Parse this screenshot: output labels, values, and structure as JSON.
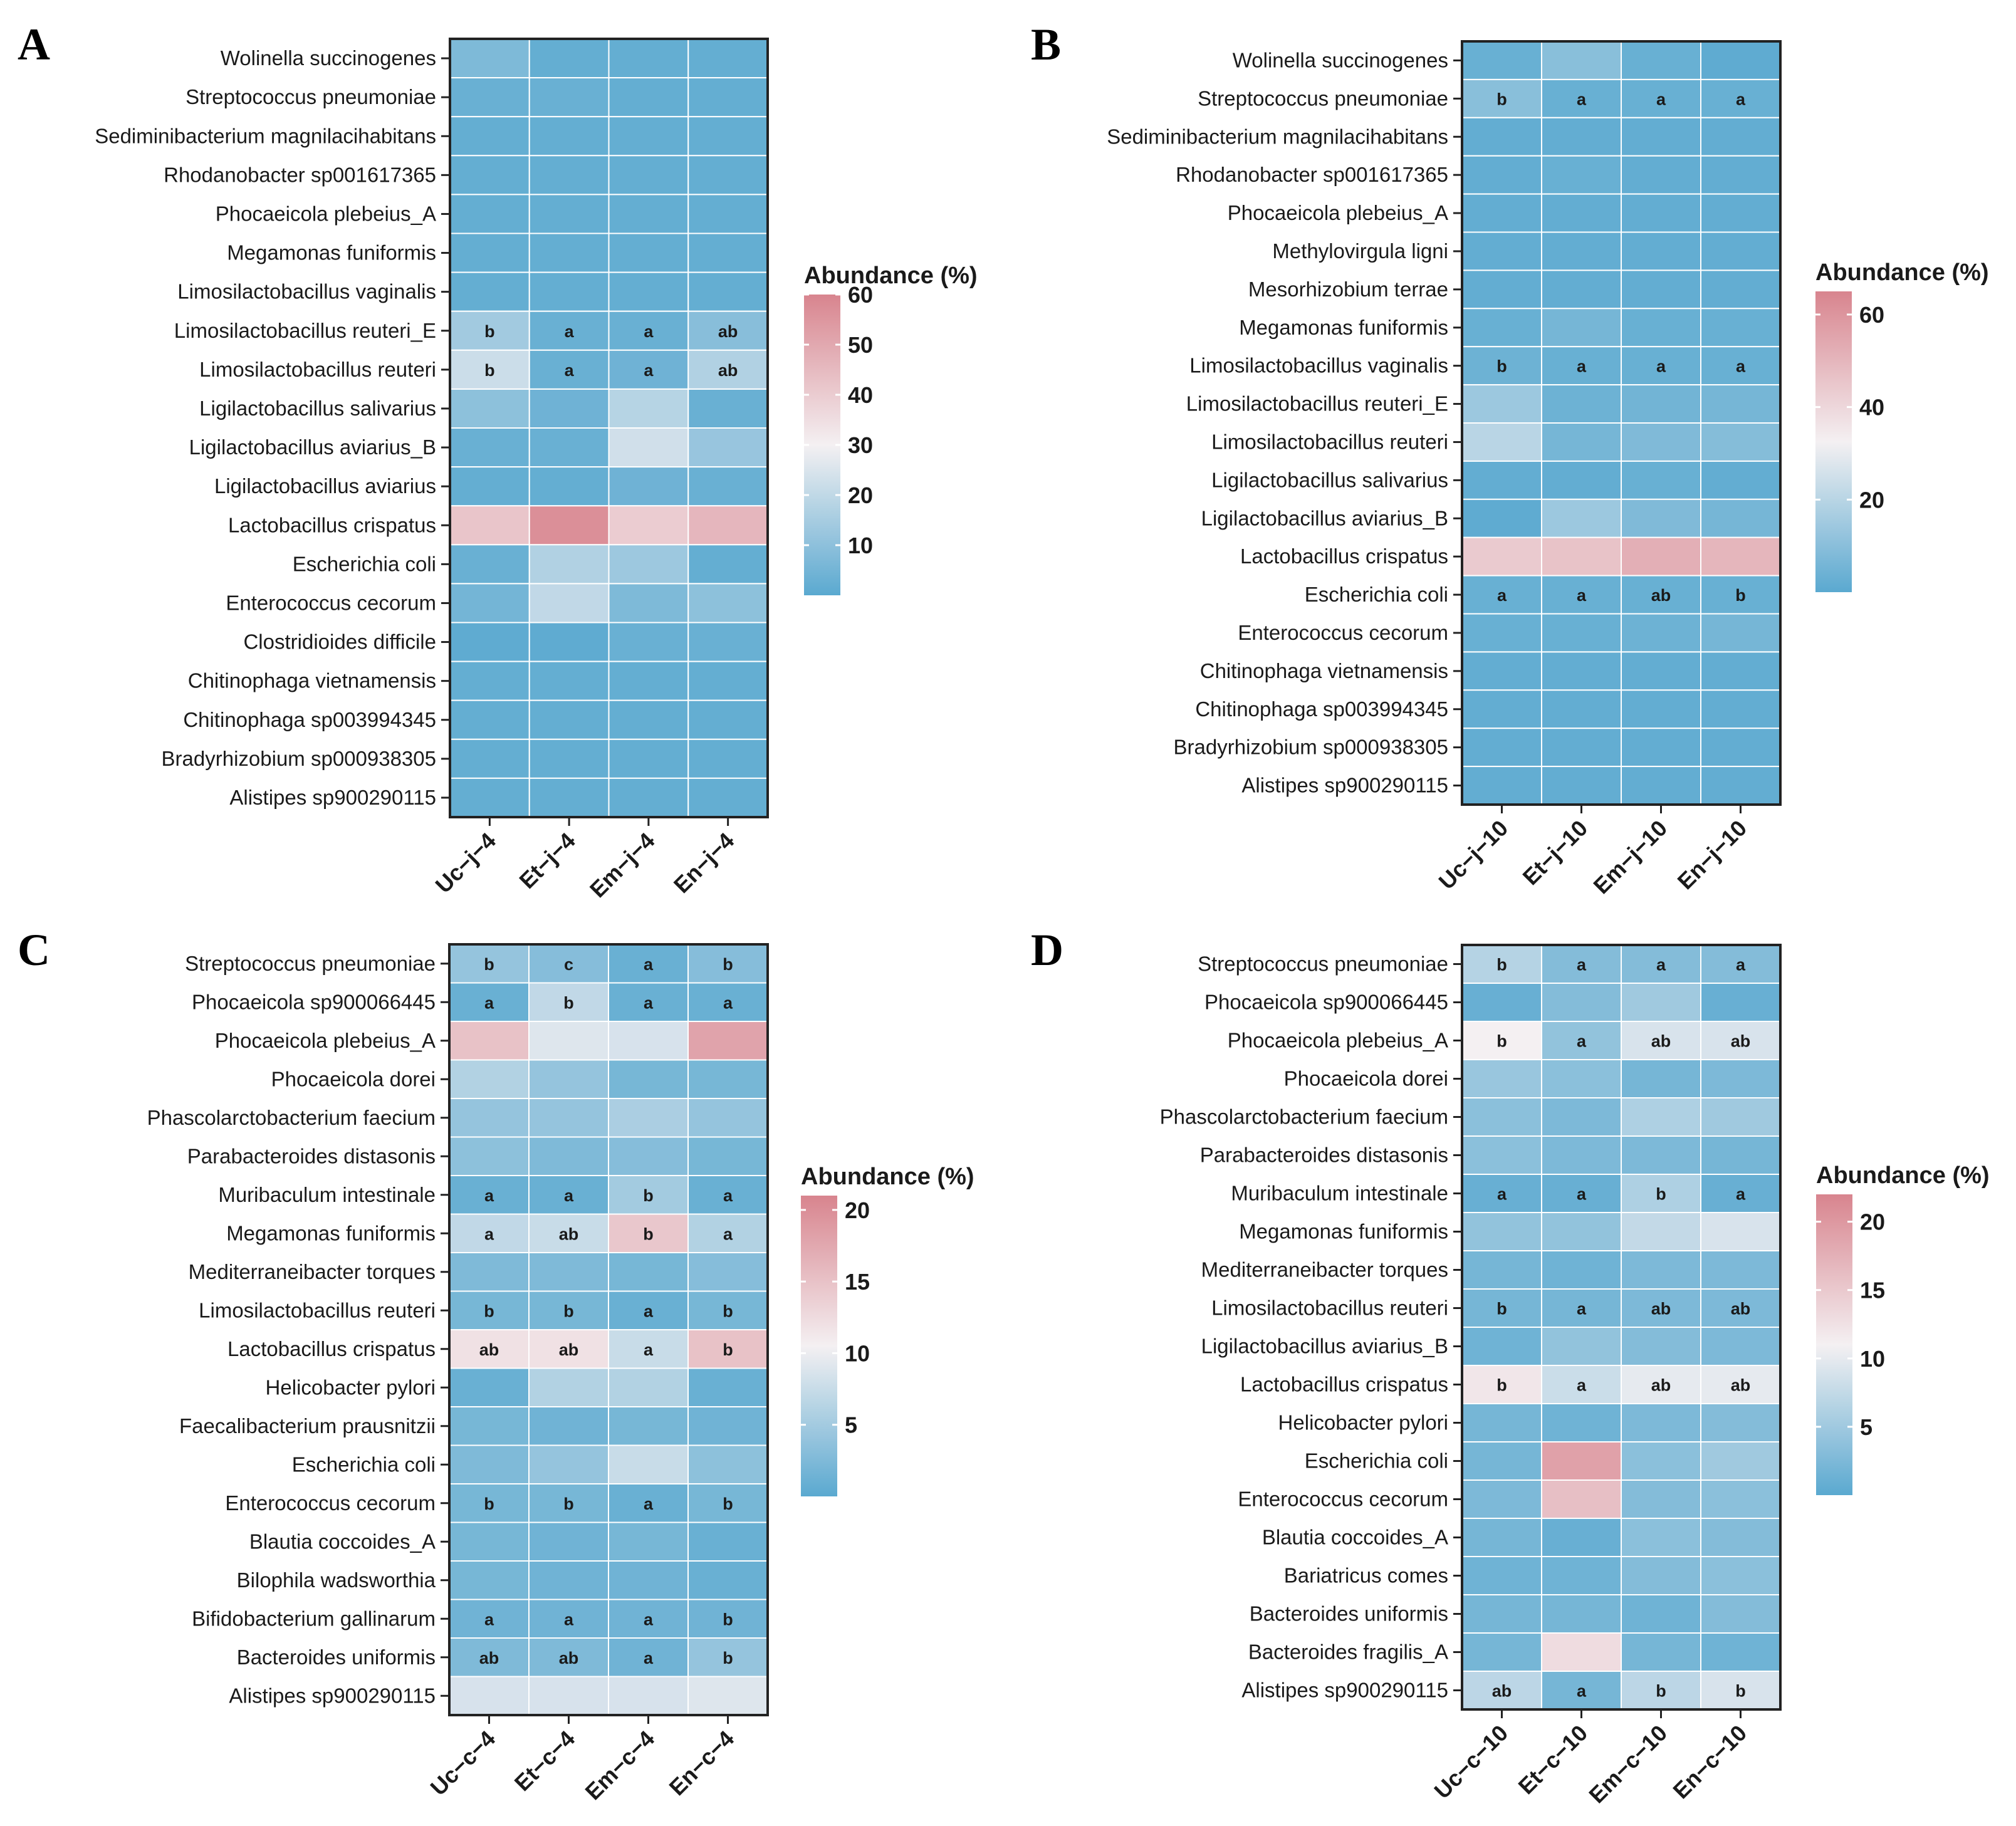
{
  "chart_data": [
    {
      "panel": "A",
      "type": "heatmap",
      "columns": [
        "Uc−j−4",
        "Et−j−4",
        "Em−j−4",
        "En−j−4"
      ],
      "rows": [
        "Wolinella succinogenes",
        "Streptococcus pneumoniae",
        "Sediminibacterium magnilacihabitans",
        "Rhodanobacter sp001617365",
        "Phocaeicola plebeius_A",
        "Megamonas funiformis",
        "Limosilactobacillus vaginalis",
        "Limosilactobacillus reuteri_E",
        "Limosilactobacillus reuteri",
        "Ligilactobacillus salivarius",
        "Ligilactobacillus aviarius_B",
        "Ligilactobacillus aviarius",
        "Lactobacillus crispatus",
        "Escherichia coli",
        "Enterococcus cecorum",
        "Clostridioides difficile",
        "Chitinophaga vietnamensis",
        "Chitinophaga sp003994345",
        "Bradyrhizobium sp000938305",
        "Alistipes sp900290115"
      ],
      "values": [
        [
          7,
          2,
          2,
          2
        ],
        [
          3,
          3,
          2,
          2
        ],
        [
          2,
          2,
          2,
          2
        ],
        [
          2,
          2,
          2,
          2
        ],
        [
          2,
          2,
          2,
          2
        ],
        [
          2,
          2,
          2,
          2
        ],
        [
          2,
          2,
          2,
          2
        ],
        [
          14,
          3,
          3,
          9
        ],
        [
          22,
          3,
          4,
          17
        ],
        [
          10,
          4,
          18,
          3
        ],
        [
          3,
          3,
          23,
          12
        ],
        [
          2,
          2,
          4,
          3
        ],
        [
          42,
          57,
          40,
          46
        ],
        [
          3,
          17,
          13,
          2
        ],
        [
          5,
          20,
          7,
          10
        ],
        [
          1,
          1,
          3,
          3
        ],
        [
          2,
          2,
          2,
          2
        ],
        [
          2,
          2,
          2,
          2
        ],
        [
          2,
          2,
          2,
          2
        ],
        [
          2,
          2,
          2,
          2
        ]
      ],
      "annotations": [
        {
          "row": 7,
          "labels": [
            "b",
            "a",
            "a",
            "ab"
          ]
        },
        {
          "row": 8,
          "labels": [
            "b",
            "a",
            "a",
            "ab"
          ]
        }
      ],
      "legend": {
        "title": "Abundance (%)",
        "ticks": [
          "60",
          "50",
          "40",
          "30",
          "20",
          "10"
        ],
        "tick_values": [
          60,
          50,
          40,
          30,
          20,
          10
        ],
        "range": [
          0,
          60
        ]
      }
    },
    {
      "panel": "B",
      "type": "heatmap",
      "columns": [
        "Uc−j−10",
        "Et−j−10",
        "Em−j−10",
        "En−j−10"
      ],
      "rows": [
        "Wolinella succinogenes",
        "Streptococcus pneumoniae",
        "Sediminibacterium magnilacihabitans",
        "Rhodanobacter sp001617365",
        "Phocaeicola plebeius_A",
        "Methylovirgula ligni",
        "Mesorhizobium terrae",
        "Megamonas funiformis",
        "Limosilactobacillus vaginalis",
        "Limosilactobacillus reuteri_E",
        "Limosilactobacillus reuteri",
        "Ligilactobacillus salivarius",
        "Ligilactobacillus aviarius_B",
        "Lactobacillus crispatus",
        "Escherichia coli",
        "Enterococcus cecorum",
        "Chitinophaga vietnamensis",
        "Chitinophaga sp003994345",
        "Bradyrhizobium sp000938305",
        "Alistipes sp900290115"
      ],
      "values": [
        [
          3,
          10,
          3,
          1
        ],
        [
          10,
          3,
          3,
          3
        ],
        [
          2,
          2,
          2,
          2
        ],
        [
          2,
          3,
          2,
          2
        ],
        [
          2,
          2,
          2,
          2
        ],
        [
          2,
          2,
          2,
          2
        ],
        [
          2,
          2,
          2,
          2
        ],
        [
          3,
          6,
          3,
          3
        ],
        [
          4,
          3,
          3,
          3
        ],
        [
          14,
          4,
          5,
          6
        ],
        [
          20,
          6,
          8,
          9
        ],
        [
          2,
          2,
          3,
          2
        ],
        [
          1,
          14,
          8,
          6
        ],
        [
          44,
          46,
          52,
          50
        ],
        [
          3,
          3,
          3,
          3
        ],
        [
          3,
          3,
          4,
          6
        ],
        [
          2,
          2,
          2,
          2
        ],
        [
          2,
          2,
          2,
          2
        ],
        [
          2,
          2,
          2,
          2
        ],
        [
          2,
          2,
          2,
          2
        ]
      ],
      "annotations": [
        {
          "row": 1,
          "labels": [
            "b",
            "a",
            "a",
            "a"
          ]
        },
        {
          "row": 8,
          "labels": [
            "b",
            "a",
            "a",
            "a"
          ]
        },
        {
          "row": 14,
          "labels": [
            "a",
            "a",
            "ab",
            "b"
          ]
        }
      ],
      "legend": {
        "title": "Abundance (%)",
        "ticks": [
          "60",
          "40",
          "20"
        ],
        "tick_values": [
          60,
          40,
          20
        ],
        "range": [
          0,
          65
        ]
      }
    },
    {
      "panel": "C",
      "type": "heatmap",
      "columns": [
        "Uc−c−4",
        "Et−c−4",
        "Em−c−4",
        "En−c−4"
      ],
      "rows": [
        "Streptococcus pneumoniae",
        "Phocaeicola sp900066445",
        "Phocaeicola plebeius_A",
        "Phocaeicola dorei",
        "Phascolarctobacterium faecium",
        "Parabacteroides distasonis",
        "Muribaculum intestinale",
        "Megamonas funiformis",
        "Mediterraneibacter torques",
        "Limosilactobacillus reuteri",
        "Lactobacillus crispatus",
        "Helicobacter pylori",
        "Faecalibacterium prausnitzii",
        "Escherichia coli",
        "Enterococcus cecorum",
        "Blautia coccoides_A",
        "Bilophila wadsworthia",
        "Bifidobacterium gallinarum",
        "Bacteroides uniformis",
        "Alistipes sp900290115"
      ],
      "values": [
        [
          4,
          3,
          1,
          3
        ],
        [
          1,
          7,
          1,
          1
        ],
        [
          15,
          9,
          8.5,
          18
        ],
        [
          6,
          4,
          2,
          2
        ],
        [
          4,
          4,
          5.5,
          4
        ],
        [
          3.5,
          2.5,
          3,
          2
        ],
        [
          1,
          1,
          5,
          1
        ],
        [
          7,
          7.5,
          14.5,
          6
        ],
        [
          2.5,
          2.5,
          2,
          3
        ],
        [
          2,
          2,
          1,
          2
        ],
        [
          12,
          12,
          7.5,
          15
        ],
        [
          1,
          6,
          6,
          1
        ],
        [
          2,
          1.5,
          2,
          1.5
        ],
        [
          2.5,
          4,
          7.5,
          3.5
        ],
        [
          2,
          2,
          1,
          2
        ],
        [
          2,
          1.5,
          2,
          1
        ],
        [
          2,
          1.5,
          1.5,
          1
        ],
        [
          1.5,
          1.5,
          1.5,
          1.5
        ],
        [
          2.5,
          2.5,
          1.5,
          4
        ],
        [
          8.5,
          8.5,
          8.5,
          9
        ]
      ],
      "annotations": [
        {
          "row": 0,
          "labels": [
            "b",
            "c",
            "a",
            "b"
          ]
        },
        {
          "row": 1,
          "labels": [
            "a",
            "b",
            "a",
            "a"
          ]
        },
        {
          "row": 6,
          "labels": [
            "a",
            "a",
            "b",
            "a"
          ]
        },
        {
          "row": 7,
          "labels": [
            "a",
            "ab",
            "b",
            "a"
          ]
        },
        {
          "row": 9,
          "labels": [
            "b",
            "b",
            "a",
            "b"
          ]
        },
        {
          "row": 10,
          "labels": [
            "ab",
            "ab",
            "a",
            "b"
          ]
        },
        {
          "row": 14,
          "labels": [
            "b",
            "b",
            "a",
            "b"
          ]
        },
        {
          "row": 17,
          "labels": [
            "a",
            "a",
            "a",
            "b"
          ]
        },
        {
          "row": 18,
          "labels": [
            "ab",
            "ab",
            "a",
            "b"
          ]
        }
      ],
      "legend": {
        "title": "Abundance (%)",
        "ticks": [
          "20",
          "15",
          "10",
          "5"
        ],
        "tick_values": [
          20,
          15,
          10,
          5
        ],
        "range": [
          0,
          21
        ]
      }
    },
    {
      "panel": "D",
      "type": "heatmap",
      "columns": [
        "Uc−c−10",
        "Et−c−10",
        "Em−c−10",
        "En−c−10"
      ],
      "rows": [
        "Streptococcus pneumoniae",
        "Phocaeicola sp900066445",
        "Phocaeicola plebeius_A",
        "Phocaeicola dorei",
        "Phascolarctobacterium faecium",
        "Parabacteroides distasonis",
        "Muribaculum intestinale",
        "Megamonas funiformis",
        "Mediterraneibacter torques",
        "Limosilactobacillus reuteri",
        "Ligilactobacillus aviarius_B",
        "Lactobacillus crispatus",
        "Helicobacter pylori",
        "Escherichia coli",
        "Enterococcus cecorum",
        "Blautia coccoides_A",
        "Bariatricus comes",
        "Bacteroides uniformis",
        "Bacteroides fragilis_A",
        "Alistipes sp900290115"
      ],
      "values": [
        [
          6.5,
          3,
          3,
          3
        ],
        [
          1,
          3,
          5,
          1
        ],
        [
          11,
          4,
          9,
          9
        ],
        [
          4.5,
          3.5,
          2,
          2.5
        ],
        [
          3.5,
          2.5,
          6,
          5
        ],
        [
          3.5,
          2.5,
          2.5,
          2
        ],
        [
          1,
          1,
          6,
          1
        ],
        [
          4,
          4,
          7.5,
          9
        ],
        [
          2,
          1.5,
          2.5,
          2.5
        ],
        [
          2,
          2,
          2.5,
          2.5
        ],
        [
          1.5,
          4,
          3,
          2.5
        ],
        [
          12,
          8,
          10,
          10
        ],
        [
          2,
          1.5,
          2.5,
          3
        ],
        [
          2,
          19,
          3.5,
          5
        ],
        [
          2.5,
          16,
          3,
          3.5
        ],
        [
          2,
          1,
          3.5,
          3
        ],
        [
          1.5,
          1.5,
          3,
          3.5
        ],
        [
          2,
          2,
          1.5,
          3
        ],
        [
          2,
          13,
          2,
          1.5
        ],
        [
          7,
          2,
          7,
          9
        ]
      ],
      "annotations": [
        {
          "row": 0,
          "labels": [
            "b",
            "a",
            "a",
            "a"
          ]
        },
        {
          "row": 2,
          "labels": [
            "b",
            "a",
            "ab",
            "ab"
          ]
        },
        {
          "row": 6,
          "labels": [
            "a",
            "a",
            "b",
            "a"
          ]
        },
        {
          "row": 9,
          "labels": [
            "b",
            "a",
            "ab",
            "ab"
          ]
        },
        {
          "row": 11,
          "labels": [
            "b",
            "a",
            "ab",
            "ab"
          ]
        },
        {
          "row": 19,
          "labels": [
            "ab",
            "a",
            "b",
            "b"
          ]
        }
      ],
      "legend": {
        "title": "Abundance (%)",
        "ticks": [
          "20",
          "15",
          "10",
          "5"
        ],
        "tick_values": [
          20,
          15,
          10,
          5
        ],
        "range": [
          0,
          22
        ]
      }
    }
  ],
  "colors": {
    "low": "#5aa9d0",
    "mid": "#f4f0f2",
    "high": "#d8848e"
  }
}
